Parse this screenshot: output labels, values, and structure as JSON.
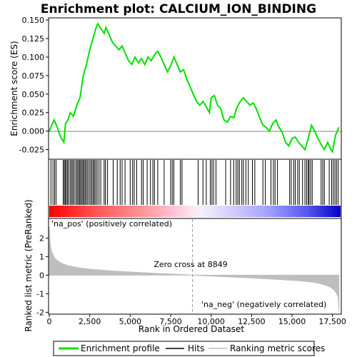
{
  "chart_data": {
    "type": "line",
    "title": "Enrichment plot: CALCIUM_ION_BINDING",
    "xlabel": "Rank in Ordered Dataset",
    "top_ylabel": "Enrichment score (ES)",
    "bottom_ylabel": "Ranked list metric (PreRanked)",
    "xlim": [
      0,
      18000
    ],
    "x_ticks": [
      0,
      2500,
      5000,
      7500,
      10000,
      12500,
      15000,
      17500
    ],
    "x_tick_labels": [
      "0",
      "2,500",
      "5,000",
      "7,500",
      "10,000",
      "12,500",
      "15,000",
      "17,500"
    ],
    "es_ylim": [
      -0.038,
      0.153
    ],
    "es_ticks": [
      -0.025,
      0.0,
      0.025,
      0.05,
      0.075,
      0.1,
      0.125,
      0.15
    ],
    "es_tick_labels": [
      "-0.025",
      "0.000",
      "0.025",
      "0.050",
      "0.075",
      "0.100",
      "0.125",
      "0.150"
    ],
    "metric_ylim": [
      -2.1,
      3.05
    ],
    "metric_ticks": [
      -2,
      -1,
      0,
      1,
      2
    ],
    "metric_tick_labels": [
      "-2",
      "-1",
      "0",
      "1",
      "2"
    ],
    "enrichment_profile": {
      "x": [
        0,
        150,
        300,
        500,
        700,
        900,
        1000,
        1150,
        1300,
        1500,
        1700,
        1900,
        2100,
        2300,
        2500,
        2700,
        2900,
        3000,
        3200,
        3400,
        3500,
        3700,
        3900,
        4100,
        4300,
        4500,
        4700,
        4900,
        5100,
        5300,
        5500,
        5700,
        5900,
        6100,
        6300,
        6500,
        6700,
        6900,
        7100,
        7300,
        7500,
        7700,
        7900,
        8100,
        8300,
        8500,
        8700,
        8900,
        9100,
        9300,
        9500,
        9700,
        9900,
        10000,
        10200,
        10400,
        10600,
        10800,
        11000,
        11200,
        11400,
        11600,
        11800,
        12000,
        12200,
        12400,
        12600,
        12800,
        13000,
        13200,
        13400,
        13600,
        13800,
        14000,
        14200,
        14400,
        14600,
        14800,
        15000,
        15200,
        15400,
        15600,
        15800,
        16000,
        16200,
        16400,
        16600,
        16800,
        17000,
        17200,
        17400,
        17500,
        17600,
        17700,
        17800,
        17900
      ],
      "y": [
        0.0,
        0.008,
        0.015,
        0.005,
        -0.008,
        -0.015,
        0.01,
        0.015,
        0.025,
        0.02,
        0.035,
        0.045,
        0.075,
        0.09,
        0.11,
        0.125,
        0.14,
        0.145,
        0.138,
        0.132,
        0.14,
        0.13,
        0.12,
        0.115,
        0.11,
        0.115,
        0.105,
        0.095,
        0.09,
        0.1,
        0.092,
        0.098,
        0.09,
        0.1,
        0.095,
        0.103,
        0.108,
        0.1,
        0.09,
        0.08,
        0.088,
        0.1,
        0.09,
        0.08,
        0.083,
        0.07,
        0.06,
        0.05,
        0.04,
        0.035,
        0.04,
        0.033,
        0.025,
        0.045,
        0.048,
        0.035,
        0.03,
        0.015,
        0.012,
        0.02,
        0.018,
        0.032,
        0.04,
        0.045,
        0.04,
        0.035,
        0.038,
        0.03,
        0.018,
        0.008,
        0.005,
        0.0,
        0.01,
        0.015,
        0.005,
        -0.002,
        -0.015,
        -0.02,
        -0.01,
        -0.008,
        -0.015,
        -0.02,
        -0.025,
        -0.01,
        0.008,
        0.0,
        -0.01,
        -0.018,
        -0.025,
        -0.015,
        -0.025,
        -0.028,
        -0.015,
        -0.005,
        0.0,
        0.005
      ]
    },
    "hit_ranks": [
      100,
      230,
      330,
      420,
      860,
      930,
      990,
      1060,
      1130,
      1210,
      1300,
      1390,
      1460,
      1540,
      1640,
      1720,
      1790,
      1870,
      1930,
      2010,
      2080,
      2150,
      2220,
      2300,
      2380,
      2470,
      2560,
      2640,
      2720,
      2790,
      2870,
      2960,
      3070,
      3180,
      3390,
      3470,
      3600,
      3950,
      4200,
      4380,
      4500,
      4680,
      5000,
      5150,
      5250,
      5400,
      5700,
      5800,
      6050,
      6250,
      6400,
      6500,
      6700,
      7100,
      7500,
      7600,
      7700,
      8100,
      8200,
      9200,
      9500,
      9700,
      9950,
      10050,
      10150,
      10300,
      10900,
      11200,
      11400,
      11550,
      11650,
      11750,
      11900,
      12000,
      12150,
      12300,
      12550,
      12700,
      13200,
      13350,
      13700,
      13850,
      13950,
      14100,
      14850,
      14950,
      15100,
      15200,
      15350,
      15450,
      15650,
      15800,
      15900,
      16000,
      16050,
      16150,
      16250,
      16800,
      16900,
      17000,
      17300,
      17450,
      17550,
      17650,
      17750,
      17850
    ],
    "metric_curve": {
      "x": [
        0,
        50,
        150,
        300,
        500,
        800,
        1200,
        1800,
        2500,
        3500,
        4500,
        5500,
        6500,
        7500,
        8000,
        8849,
        9500,
        10500,
        11500,
        12500,
        13500,
        14500,
        15000,
        15500,
        16000,
        16500,
        16800,
        17000,
        17200,
        17400,
        17600,
        17750,
        17850,
        17900
      ],
      "y": [
        2.6,
        1.7,
        1.25,
        0.95,
        0.78,
        0.62,
        0.5,
        0.4,
        0.32,
        0.25,
        0.19,
        0.15,
        0.1,
        0.06,
        0.04,
        0.0,
        -0.03,
        -0.07,
        -0.11,
        -0.15,
        -0.2,
        -0.25,
        -0.28,
        -0.31,
        -0.35,
        -0.41,
        -0.47,
        -0.52,
        -0.58,
        -0.66,
        -0.8,
        -0.97,
        -1.2,
        -1.95
      ]
    },
    "zero_cross_rank": 8849,
    "annotations": {
      "zero_cross": "Zero cross at 8849",
      "pos_label": "'na_pos' (positively correlated)",
      "neg_label": "'na_neg' (negatively correlated)"
    },
    "legend": {
      "placement": "bottom",
      "entries": [
        "Enrichment profile",
        "Hits",
        "Ranking metric scores"
      ]
    },
    "colors": {
      "profile": "#00e000",
      "hits": "#000000",
      "metric_fill": "#bebebe",
      "pos_label": "#cc0000",
      "neg_label": "#0000cc",
      "zero_cross_line": "#999999",
      "bar_red": "#ff0000",
      "bar_mid": "#ffffff",
      "bar_blue": "#0000cc"
    }
  }
}
